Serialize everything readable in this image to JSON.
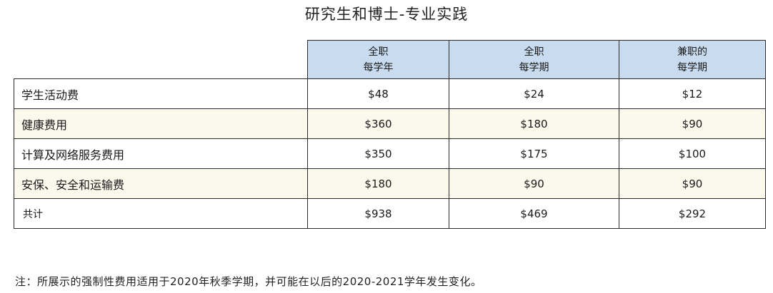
{
  "title": "研究生和博士-专业实践",
  "table": {
    "headers": [
      {
        "line1": "全职",
        "line2": "每学年"
      },
      {
        "line1": "全职",
        "line2": "每学期"
      },
      {
        "line1": "兼职的",
        "line2": "每学期"
      }
    ],
    "rows": [
      {
        "label": "学生活动费",
        "values": [
          "$48",
          "$24",
          "$12"
        ]
      },
      {
        "label": "健康费用",
        "values": [
          "$360",
          "$180",
          "$90"
        ]
      },
      {
        "label": "计算及网络服务费用",
        "values": [
          "$350",
          "$175",
          "$100"
        ]
      },
      {
        "label": "安保、安全和运输费",
        "values": [
          "$180",
          "$90",
          "$90"
        ]
      },
      {
        "label": "共计",
        "values": [
          "$938",
          "$469",
          "$292"
        ]
      }
    ]
  },
  "note": "注：所展示的强制性费用适用于2020年秋季学期，并可能在以后的2020-2021学年发生变化。",
  "colors": {
    "header_bg": "#c9dcef",
    "shaded_row_bg": "#fbf8ec",
    "border": "#2b2b2b"
  }
}
